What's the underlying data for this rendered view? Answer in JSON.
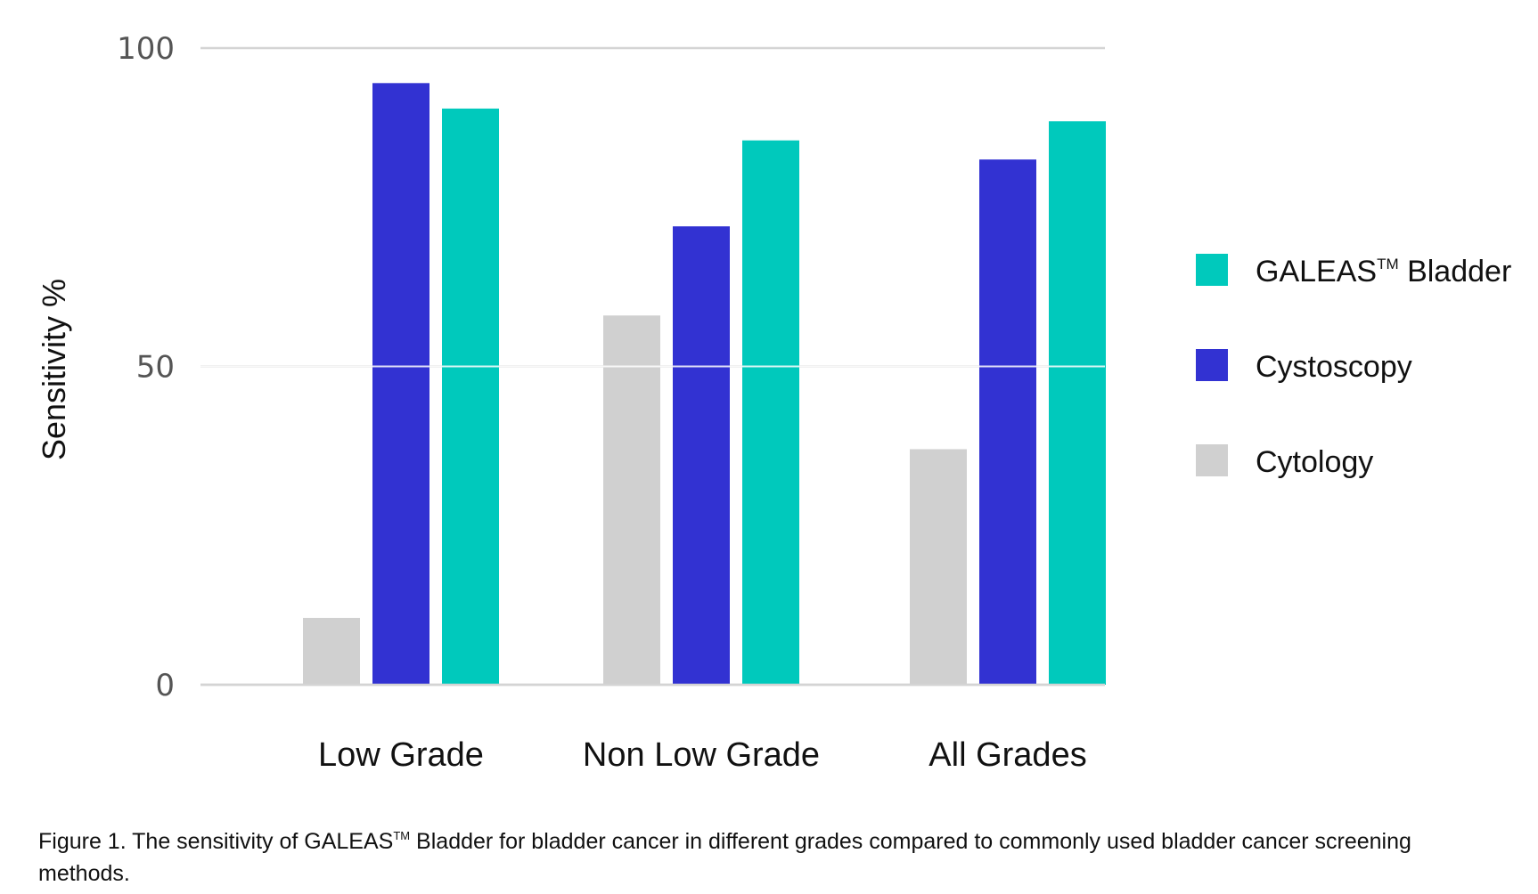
{
  "chart_data": {
    "type": "bar",
    "title": "",
    "xlabel": "",
    "ylabel": "Sensitivity %",
    "ylim": [
      0,
      100
    ],
    "yticks": [
      0,
      50,
      100
    ],
    "grid": true,
    "legend_position": "right",
    "categories": [
      "Low Grade",
      "Non Low Grade",
      "All Grades"
    ],
    "series": [
      {
        "name": "Cytology",
        "values": [
          10.5,
          58,
          37
        ],
        "color": "#d0d0d0"
      },
      {
        "name": "Cystoscopy",
        "values": [
          94.5,
          72,
          82.5
        ],
        "color": "#3232d2"
      },
      {
        "name": "GALEAS™ Bladder",
        "values": [
          90.5,
          85.5,
          88.5
        ],
        "color": "#00c9bc"
      }
    ],
    "legend": [
      {
        "name_main": "GALEAS",
        "name_tm": "TM",
        "name_rest": " Bladder",
        "color": "#00c9bc"
      },
      {
        "name_main": "Cystoscopy",
        "name_tm": "",
        "name_rest": "",
        "color": "#3232d2"
      },
      {
        "name_main": "Cytology",
        "name_tm": "",
        "name_rest": "",
        "color": "#d0d0d0"
      }
    ]
  },
  "caption": {
    "line1_before_tm": "Figure 1. The sensitivity of GALEAS",
    "tm": "TM",
    "line1_after_tm": " Bladder for bladder cancer in different grades compared to commonly used bladder cancer screening",
    "line2": "methods."
  }
}
